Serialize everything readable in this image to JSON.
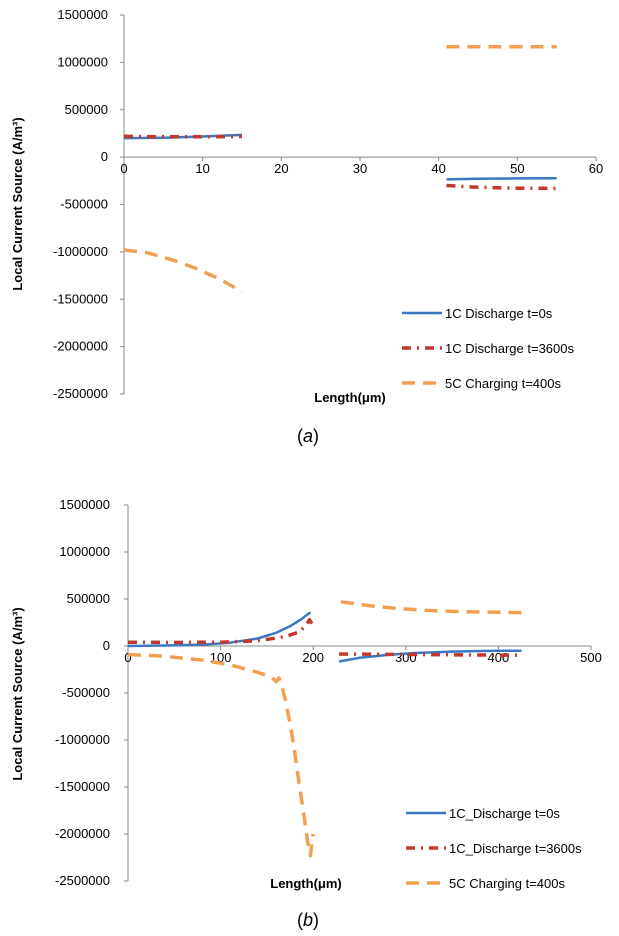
{
  "chart_data": [
    {
      "type": "line",
      "caption": "a",
      "ylabel": "Local Current Source (A/m³)",
      "xlabel": "Length(μm)",
      "xlim": [
        0,
        60
      ],
      "ylim": [
        -2500000,
        1500000
      ],
      "xticks": [
        "0",
        "10",
        "20",
        "30",
        "40",
        "50",
        "60"
      ],
      "yticks": [
        "1500000",
        "1000000",
        "500000",
        "0",
        "-500000",
        "-1000000",
        "-1500000",
        "-2000000",
        "-2500000"
      ],
      "grid": false,
      "legend_position": "bottom-right",
      "series": [
        {
          "name": "1C Discharge t=0s",
          "color": "#3b78c4",
          "style": "solid",
          "segments": [
            [
              [
                0,
                200000
              ],
              [
                5,
                205000
              ],
              [
                10,
                218000
              ],
              [
                15,
                235000
              ]
            ],
            [
              [
                41,
                -235000
              ],
              [
                45,
                -228000
              ],
              [
                50,
                -225000
              ],
              [
                55,
                -222000
              ]
            ]
          ]
        },
        {
          "name": "1C Discharge t=3600s",
          "color": "#c0392b",
          "style": "dashdot",
          "segments": [
            [
              [
                0,
                220000
              ],
              [
                5,
                215000
              ],
              [
                10,
                215000
              ],
              [
                15,
                218000
              ]
            ],
            [
              [
                41,
                -300000
              ],
              [
                45,
                -318000
              ],
              [
                50,
                -328000
              ],
              [
                55,
                -330000
              ]
            ]
          ]
        },
        {
          "name": "5C Charging t=400s",
          "color": "#f0a050",
          "style": "dash",
          "segments": [
            [
              [
                0,
                -980000
              ],
              [
                3,
                -1010000
              ],
              [
                6,
                -1080000
              ],
              [
                9,
                -1170000
              ],
              [
                12,
                -1280000
              ],
              [
                15,
                -1420000
              ]
            ],
            [
              [
                41,
                1165000
              ],
              [
                45,
                1165000
              ],
              [
                50,
                1165000
              ],
              [
                55,
                1165000
              ]
            ]
          ]
        }
      ]
    },
    {
      "type": "line",
      "caption": "b",
      "ylabel": "Local Current Source (A/m³)",
      "xlabel": "Length(μm)",
      "xlim": [
        0,
        500
      ],
      "ylim": [
        -2500000,
        1500000
      ],
      "xticks": [
        "0",
        "100",
        "200",
        "300",
        "400",
        "500"
      ],
      "yticks": [
        "1500000",
        "1000000",
        "500000",
        "0",
        "-500000",
        "-1000000",
        "-1500000",
        "-2000000",
        "-2500000"
      ],
      "grid": false,
      "legend_position": "bottom-right",
      "series": [
        {
          "name": "1C_Discharge t=0s",
          "color": "#3b78c4",
          "style": "solid",
          "segments": [
            [
              [
                0,
                0
              ],
              [
                40,
                5000
              ],
              [
                80,
                15000
              ],
              [
                110,
                35000
              ],
              [
                140,
                80000
              ],
              [
                160,
                140000
              ],
              [
                175,
                210000
              ],
              [
                188,
                290000
              ],
              [
                197,
                360000
              ]
            ],
            [
              [
                228,
                -165000
              ],
              [
                250,
                -125000
              ],
              [
                280,
                -95000
              ],
              [
                310,
                -75000
              ],
              [
                350,
                -60000
              ],
              [
                390,
                -52000
              ],
              [
                425,
                -50000
              ]
            ]
          ]
        },
        {
          "name": "1C_Discharge t=3600s",
          "color": "#c0392b",
          "style": "dashdot",
          "segments": [
            [
              [
                0,
                40000
              ],
              [
                50,
                38000
              ],
              [
                100,
                40000
              ],
              [
                140,
                55000
              ],
              [
                170,
                100000
              ],
              [
                185,
                150000
              ],
              [
                193,
                230000
              ],
              [
                196,
                280000
              ],
              [
                199,
                230000
              ]
            ],
            [
              [
                228,
                -85000
              ],
              [
                270,
                -88000
              ],
              [
                320,
                -92000
              ],
              [
                370,
                -96000
              ],
              [
                425,
                -98000
              ]
            ]
          ]
        },
        {
          "name": "5C Charging t=400s",
          "color": "#f0a050",
          "style": "dash",
          "segments": [
            [
              [
                0,
                -90000
              ],
              [
                40,
                -110000
              ],
              [
                80,
                -150000
              ],
              [
                110,
                -200000
              ],
              [
                140,
                -280000
              ],
              [
                155,
                -330000
              ],
              [
                160,
                -380000
              ],
              [
                163,
                -340000
              ],
              [
                166,
                -420000
              ],
              [
                170,
                -580000
              ],
              [
                175,
                -820000
              ],
              [
                180,
                -1130000
              ],
              [
                185,
                -1480000
              ],
              [
                190,
                -1800000
              ],
              [
                194,
                -2080000
              ],
              [
                197,
                -2230000
              ],
              [
                200,
                -2000000
              ]
            ],
            [
              [
                230,
                470000
              ],
              [
                260,
                430000
              ],
              [
                290,
                400000
              ],
              [
                320,
                380000
              ],
              [
                360,
                365000
              ],
              [
                400,
                358000
              ],
              [
                425,
                355000
              ]
            ]
          ]
        }
      ]
    }
  ]
}
